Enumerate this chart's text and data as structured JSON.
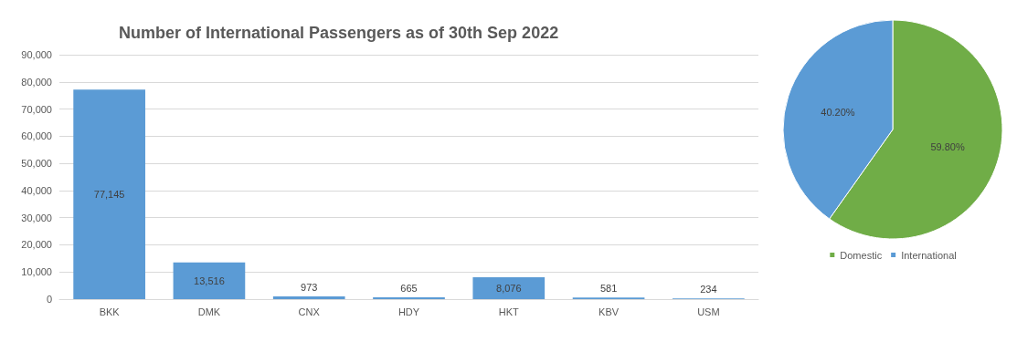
{
  "chart_data": [
    {
      "type": "bar",
      "title": "Number of International Passengers as of 30th Sep 2022",
      "categories": [
        "BKK",
        "DMK",
        "CNX",
        "HDY",
        "HKT",
        "KBV",
        "USM"
      ],
      "values": [
        77145,
        13516,
        973,
        665,
        8076,
        581,
        234
      ],
      "color": "#5b9bd5",
      "value_labels": [
        "77,145",
        "13,516",
        "973",
        "665",
        "8,076",
        "581",
        "234"
      ],
      "ylim": [
        0,
        90000
      ],
      "yticks": [
        {
          "value": 0,
          "label": "0"
        },
        {
          "value": 10000,
          "label": "10,000"
        },
        {
          "value": 20000,
          "label": "20,000"
        },
        {
          "value": 30000,
          "label": "30,000"
        },
        {
          "value": 40000,
          "label": "40,000"
        },
        {
          "value": 50000,
          "label": "50,000"
        },
        {
          "value": 60000,
          "label": "60,000"
        },
        {
          "value": 70000,
          "label": "70,000"
        },
        {
          "value": 80000,
          "label": "80,000"
        },
        {
          "value": 90000,
          "label": "90,000"
        }
      ],
      "grid": "y",
      "legend": false
    },
    {
      "type": "pie",
      "categories": [
        "Domestic",
        "International"
      ],
      "values": [
        59.8,
        40.2
      ],
      "colors": [
        "#70ad47",
        "#5b9bd5"
      ],
      "value_labels": [
        "59.80%",
        "40.20%"
      ],
      "legend": "bottom"
    }
  ]
}
